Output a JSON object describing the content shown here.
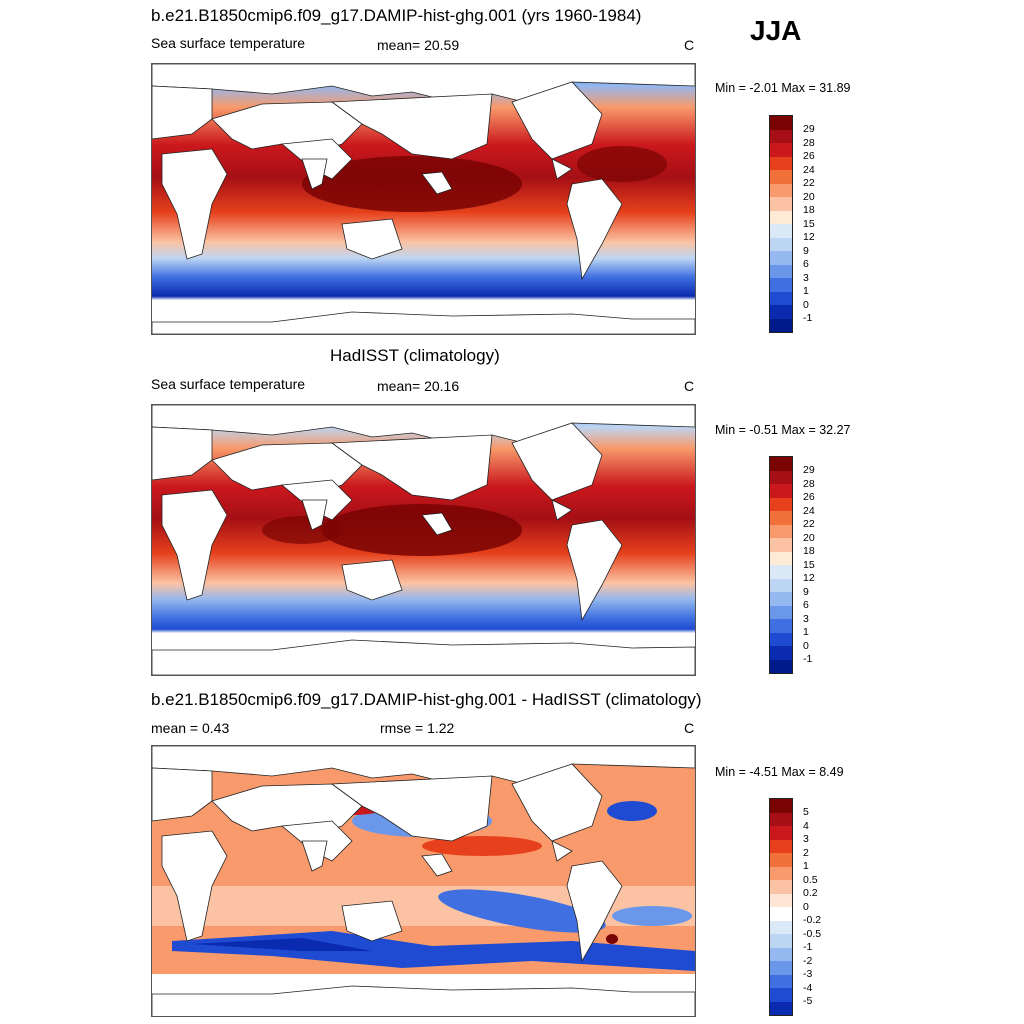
{
  "season": "JJA",
  "panels": [
    {
      "title": "b.e21.B1850cmip6.f09_g17.DAMIP-hist-ghg.001 (yrs 1960-1984)",
      "left_label": "Sea surface temperature",
      "center_label": "mean=  20.59",
      "units": "C",
      "minmax": "Min =  -2.01 Max =  31.89",
      "colorbar_labels": [
        "29",
        "28",
        "26",
        "24",
        "22",
        "20",
        "18",
        "15",
        "12",
        "9",
        "6",
        "3",
        "1",
        "0",
        "-1"
      ]
    },
    {
      "title": "HadISST (climatology)",
      "left_label": "Sea surface temperature",
      "center_label": "mean=  20.16",
      "units": "C",
      "minmax": "Min =  -0.51 Max =  32.27",
      "colorbar_labels": [
        "29",
        "28",
        "26",
        "24",
        "22",
        "20",
        "18",
        "15",
        "12",
        "9",
        "6",
        "3",
        "1",
        "0",
        "-1"
      ]
    },
    {
      "title": "b.e21.B1850cmip6.f09_g17.DAMIP-hist-ghg.001 - HadISST (climatology)",
      "left_label": "mean =   0.43",
      "center_label": "rmse =   1.22",
      "units": "C",
      "minmax": "Min =  -4.51 Max =   8.49",
      "colorbar_labels": [
        "5",
        "4",
        "3",
        "2",
        "1",
        "0.5",
        "0.2",
        "0",
        "-0.2",
        "-0.5",
        "-1",
        "-2",
        "-3",
        "-4",
        "-5"
      ]
    }
  ],
  "colors": {
    "sst_scale": [
      "#7a0403",
      "#a50f15",
      "#cb181d",
      "#e6411c",
      "#f2703a",
      "#f89a6b",
      "#fbc3a3",
      "#feebd6",
      "#dbe9f6",
      "#bcd5f3",
      "#94b8ef",
      "#6b97ea",
      "#3f6fe0",
      "#1e4bd2",
      "#0a2ab0",
      "#001a8c"
    ],
    "diff_scale": [
      "#7a0403",
      "#a50f15",
      "#cb181d",
      "#e6411c",
      "#f2703a",
      "#f89a6b",
      "#fbc3a3",
      "#fee5d6",
      "#ffffff",
      "#dbe9f6",
      "#bcd5f3",
      "#94b8ef",
      "#6b97ea",
      "#3f6fe0",
      "#1e4bd2",
      "#0a2ab0",
      "#001a8c"
    ]
  }
}
